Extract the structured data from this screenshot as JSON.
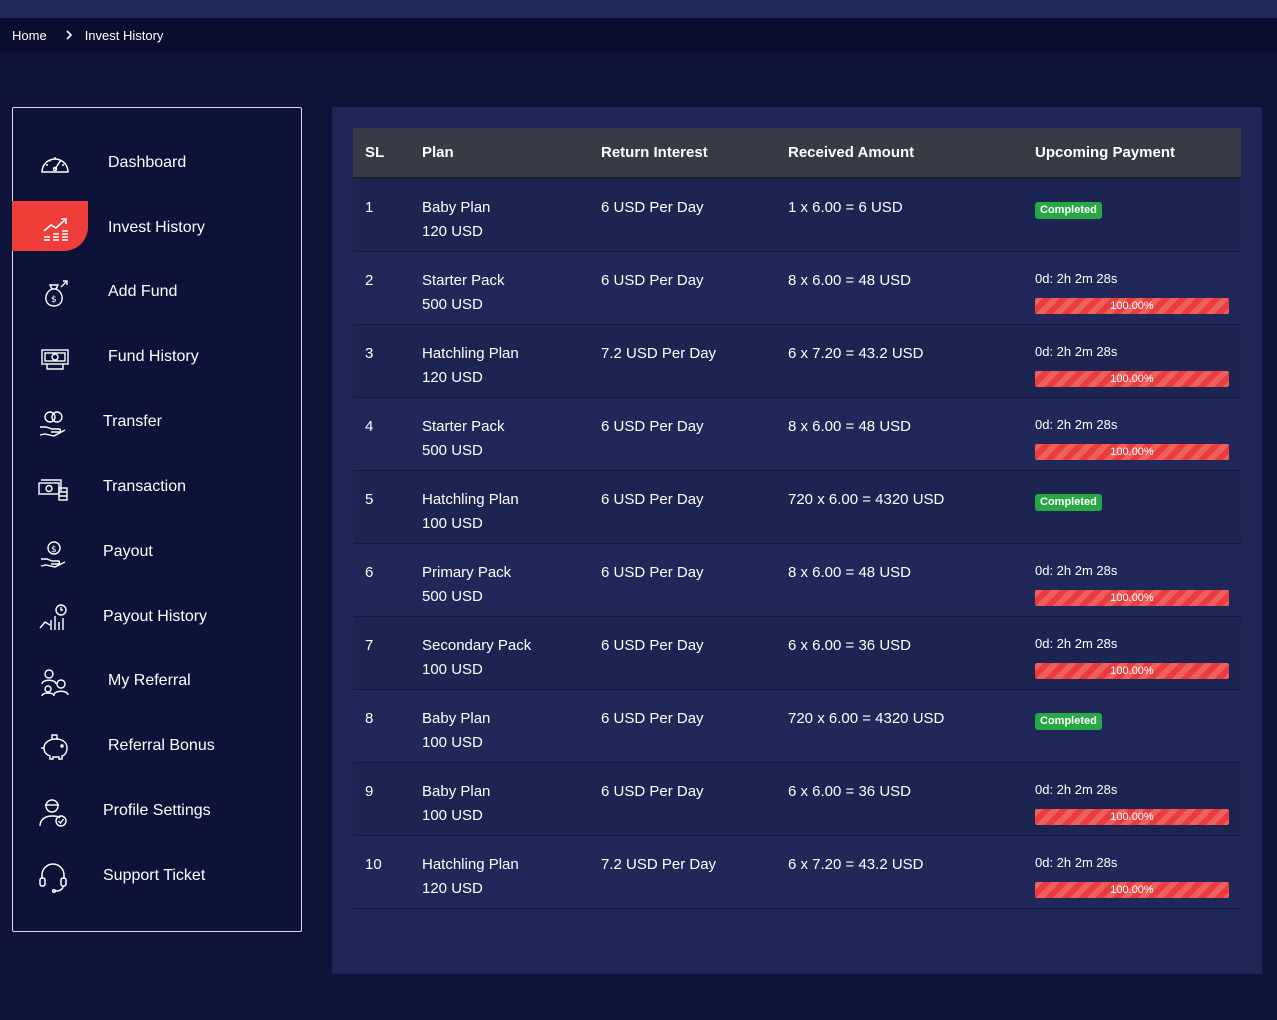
{
  "breadcrumb": {
    "home": "Home",
    "current": "Invest History"
  },
  "sidebar": {
    "items": [
      {
        "label": "Dashboard",
        "icon": "speedometer-icon"
      },
      {
        "label": "Invest History",
        "icon": "chart-growth-icon",
        "active": true
      },
      {
        "label": "Add Fund",
        "icon": "money-bag-icon"
      },
      {
        "label": "Fund History",
        "icon": "banknote-icon"
      },
      {
        "label": "Transfer",
        "icon": "coins-hand-icon"
      },
      {
        "label": "Transaction",
        "icon": "cash-stack-icon"
      },
      {
        "label": "Payout",
        "icon": "payout-hand-icon"
      },
      {
        "label": "Payout History",
        "icon": "payout-history-icon"
      },
      {
        "label": "My Referral",
        "icon": "referral-people-icon"
      },
      {
        "label": "Referral Bonus",
        "icon": "piggy-bank-icon"
      },
      {
        "label": "Profile Settings",
        "icon": "user-settings-icon"
      },
      {
        "label": "Support Ticket",
        "icon": "headset-icon"
      }
    ]
  },
  "table": {
    "headers": [
      "SL",
      "Plan",
      "Return Interest",
      "Received Amount",
      "Upcoming Payment"
    ],
    "rows": [
      {
        "sl": "1",
        "plan": "Baby Plan",
        "amount": "120 USD",
        "interest": "6 USD Per Day",
        "received": "1 x 6.00 = 6 USD",
        "status": "Completed"
      },
      {
        "sl": "2",
        "plan": "Starter Pack",
        "amount": "500 USD",
        "interest": "6 USD Per Day",
        "received": "8 x 6.00 = 48 USD",
        "timer": "0d: 2h 2m 28s",
        "progress": "100.00%"
      },
      {
        "sl": "3",
        "plan": "Hatchling Plan",
        "amount": "120 USD",
        "interest": "7.2 USD Per Day",
        "received": "6 x 7.20 = 43.2 USD",
        "timer": "0d: 2h 2m 28s",
        "progress": "100.00%"
      },
      {
        "sl": "4",
        "plan": "Starter Pack",
        "amount": "500 USD",
        "interest": "6 USD Per Day",
        "received": "8 x 6.00 = 48 USD",
        "timer": "0d: 2h 2m 28s",
        "progress": "100.00%"
      },
      {
        "sl": "5",
        "plan": "Hatchling Plan",
        "amount": "100 USD",
        "interest": "6 USD Per Day",
        "received": "720 x 6.00 = 4320 USD",
        "status": "Completed"
      },
      {
        "sl": "6",
        "plan": "Primary Pack",
        "amount": "500 USD",
        "interest": "6 USD Per Day",
        "received": "8 x 6.00 = 48 USD",
        "timer": "0d: 2h 2m 28s",
        "progress": "100.00%"
      },
      {
        "sl": "7",
        "plan": "Secondary Pack",
        "amount": "100 USD",
        "interest": "6 USD Per Day",
        "received": "6 x 6.00 = 36 USD",
        "timer": "0d: 2h 2m 28s",
        "progress": "100.00%"
      },
      {
        "sl": "8",
        "plan": "Baby Plan",
        "amount": "100 USD",
        "interest": "6 USD Per Day",
        "received": "720 x 6.00 = 4320 USD",
        "status": "Completed"
      },
      {
        "sl": "9",
        "plan": "Baby Plan",
        "amount": "100 USD",
        "interest": "6 USD Per Day",
        "received": "6 x 6.00 = 36 USD",
        "timer": "0d: 2h 2m 28s",
        "progress": "100.00%"
      },
      {
        "sl": "10",
        "plan": "Hatchling Plan",
        "amount": "120 USD",
        "interest": "7.2 USD Per Day",
        "received": "6 x 7.20 = 43.2 USD",
        "timer": "0d: 2h 2m 28s",
        "progress": "100.00%"
      }
    ]
  },
  "colors": {
    "background": "#0e1339",
    "panel": "#1e2757",
    "accent_red": "#ef3d3a",
    "success_green": "#28a745",
    "table_header": "#363b45"
  }
}
